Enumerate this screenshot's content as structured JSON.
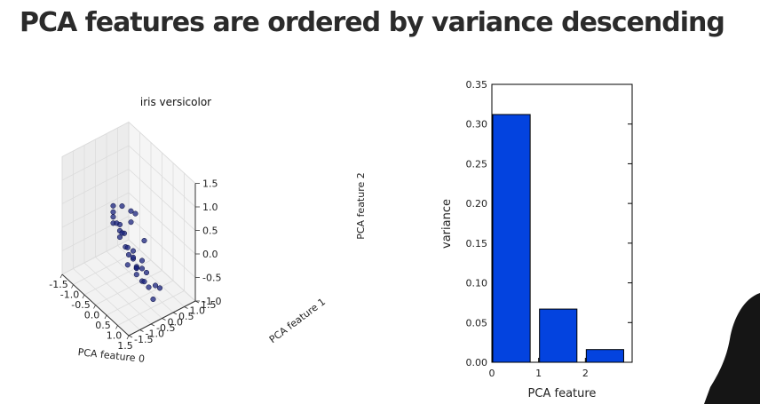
{
  "slide": {
    "title": "PCA features are ordered by variance descending"
  },
  "chart_data": [
    {
      "type": "scatter",
      "projection": "3d",
      "title": "iris versicolor",
      "xlabel": "PCA feature 0",
      "ylabel": "PCA feature 1",
      "zlabel": "PCA feature 2",
      "xlim": [
        -1.5,
        1.5
      ],
      "ylim": [
        -1.5,
        1.5
      ],
      "zlim": [
        -1.0,
        1.5
      ],
      "xticks": [
        "-1.5",
        "-1.0",
        "-0.5",
        "0.0",
        "0.5",
        "1.0",
        "1.5"
      ],
      "yticks": [
        "-1.5",
        "-1.0",
        "-0.5",
        "0.0",
        "0.5",
        "1.0",
        "1.5"
      ],
      "zticks": [
        "-1.0",
        "-0.5",
        "0.0",
        "0.5",
        "1.0",
        "1.5"
      ],
      "grid": true,
      "marker_color": "#1a237e",
      "points": [
        {
          "x": -1.0,
          "y": 0.3,
          "z": 0.1
        },
        {
          "x": -0.9,
          "y": 0.2,
          "z": 0.3
        },
        {
          "x": -0.8,
          "y": 0.1,
          "z": 0.0
        },
        {
          "x": -0.7,
          "y": 0.0,
          "z": 0.2
        },
        {
          "x": -0.6,
          "y": 0.2,
          "z": -0.1
        },
        {
          "x": -0.5,
          "y": 0.1,
          "z": 0.1
        },
        {
          "x": -0.45,
          "y": -0.1,
          "z": 0.2
        },
        {
          "x": -0.4,
          "y": 0.0,
          "z": -0.1
        },
        {
          "x": -0.3,
          "y": 0.1,
          "z": 0.0
        },
        {
          "x": -0.2,
          "y": -0.1,
          "z": 0.1
        },
        {
          "x": -0.15,
          "y": 0.0,
          "z": -0.2
        },
        {
          "x": -0.1,
          "y": 0.2,
          "z": 0.3
        },
        {
          "x": 0.0,
          "y": 0.0,
          "z": -0.3
        },
        {
          "x": 0.05,
          "y": -0.1,
          "z": -0.1
        },
        {
          "x": 0.1,
          "y": 0.1,
          "z": -0.2
        },
        {
          "x": 0.15,
          "y": -0.2,
          "z": -0.4
        },
        {
          "x": 0.2,
          "y": 0.0,
          "z": -0.3
        },
        {
          "x": 0.25,
          "y": 0.1,
          "z": -0.5
        },
        {
          "x": 0.3,
          "y": -0.1,
          "z": -0.2
        },
        {
          "x": 0.35,
          "y": 0.0,
          "z": -0.4
        },
        {
          "x": 0.4,
          "y": 0.2,
          "z": -0.3
        },
        {
          "x": 0.45,
          "y": -0.1,
          "z": -0.5
        },
        {
          "x": 0.5,
          "y": 0.1,
          "z": -0.4
        },
        {
          "x": 0.55,
          "y": -0.2,
          "z": -0.3
        },
        {
          "x": 0.6,
          "y": 0.0,
          "z": -0.6
        },
        {
          "x": 0.7,
          "y": 0.1,
          "z": -0.4
        },
        {
          "x": 0.8,
          "y": -0.1,
          "z": -0.5
        },
        {
          "x": 0.9,
          "y": 0.0,
          "z": -0.6
        },
        {
          "x": 1.1,
          "y": 0.1,
          "z": -0.5
        },
        {
          "x": 1.2,
          "y": -0.1,
          "z": -0.7
        },
        {
          "x": -0.3,
          "y": 0.4,
          "z": 0.4
        },
        {
          "x": 0.0,
          "y": 0.3,
          "z": 0.5
        },
        {
          "x": -0.6,
          "y": 0.3,
          "z": 0.4
        },
        {
          "x": 0.4,
          "y": 0.3,
          "z": 0.1
        },
        {
          "x": 1.4,
          "y": 0.0,
          "z": -0.4
        }
      ]
    },
    {
      "type": "bar",
      "title": "",
      "xlabel": "PCA feature",
      "ylabel": "variance",
      "categories": [
        "0",
        "1",
        "2"
      ],
      "values": [
        0.312,
        0.067,
        0.016
      ],
      "ylim": [
        0.0,
        0.35
      ],
      "xlim": [
        0,
        3
      ],
      "yticks": [
        "0.00",
        "0.05",
        "0.10",
        "0.15",
        "0.20",
        "0.25",
        "0.30",
        "0.35"
      ],
      "xticks": [
        "0",
        "1",
        "2"
      ],
      "bar_color": "#0343df"
    }
  ]
}
